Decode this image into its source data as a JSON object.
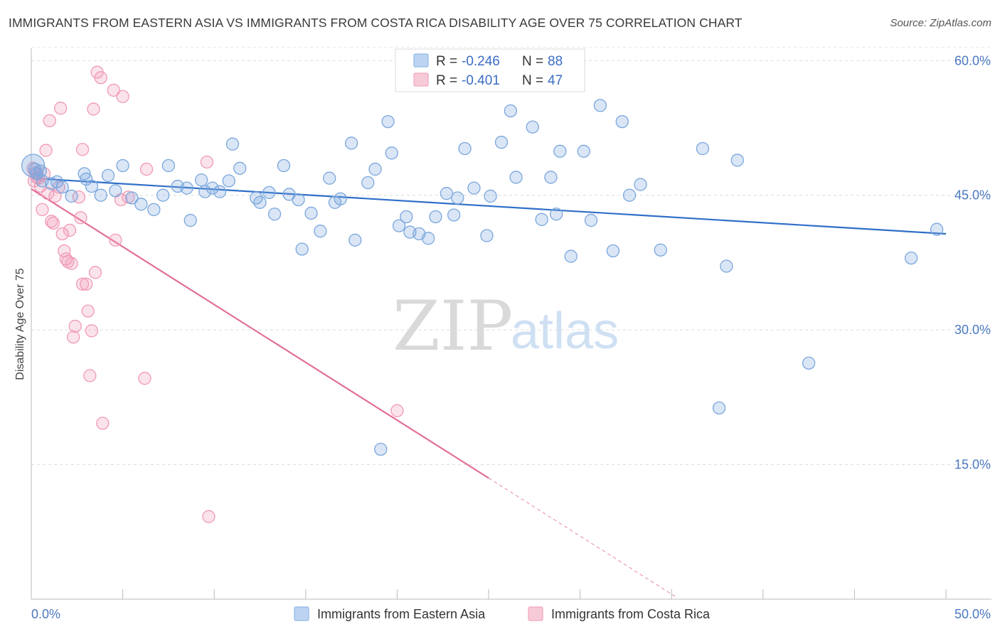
{
  "title": "IMMIGRANTS FROM EASTERN ASIA VS IMMIGRANTS FROM COSTA RICA DISABILITY AGE OVER 75 CORRELATION CHART",
  "source": "Source: ZipAtlas.com",
  "watermark": {
    "zip": "ZIP",
    "atlas": "atlas"
  },
  "chart_data": {
    "type": "scatter",
    "title": "IMMIGRANTS FROM EASTERN ASIA VS IMMIGRANTS FROM COSTA RICA DISABILITY AGE OVER 75 CORRELATION CHART",
    "xlabel": "",
    "ylabel": "Disability Age Over 75",
    "xlim": [
      0,
      50
    ],
    "ylim": [
      0,
      62
    ],
    "x_ticks": [
      "0.0%",
      "50.0%"
    ],
    "y_ticks": [
      {
        "value": 15,
        "label": "15.0%"
      },
      {
        "value": 30,
        "label": "30.0%"
      },
      {
        "value": 45,
        "label": "45.0%"
      },
      {
        "value": 60,
        "label": "60.0%"
      }
    ],
    "grid": true,
    "legend_placement": "top-center",
    "legend": [
      {
        "r_label": "R = ",
        "r": "-0.246",
        "n_label": "N = ",
        "n": "88",
        "color": "#8fb8e8"
      },
      {
        "r_label": "R = ",
        "r": "-0.401",
        "n_label": "N = ",
        "n": "47",
        "color": "#f2a6bd"
      }
    ],
    "series": [
      {
        "name": "Immigrants from Eastern Asia",
        "color": "#7aa7dd",
        "line_color": "#2f6fc8",
        "trend": {
          "x0": 0,
          "y0": 46.9,
          "x1": 50,
          "y1": 40.7
        },
        "points": [
          [
            0.2,
            47.9
          ],
          [
            0.3,
            47.4
          ],
          [
            0.5,
            47.7
          ],
          [
            0.6,
            46.6
          ],
          [
            1.1,
            46.3
          ],
          [
            1.4,
            46.5
          ],
          [
            1.7,
            45.9
          ],
          [
            2.2,
            44.9
          ],
          [
            2.9,
            47.4
          ],
          [
            3.0,
            46.8
          ],
          [
            3.3,
            46.0
          ],
          [
            3.8,
            45.0
          ],
          [
            4.2,
            47.2
          ],
          [
            4.6,
            45.5
          ],
          [
            5.0,
            48.3
          ],
          [
            5.5,
            44.7
          ],
          [
            6.0,
            44.0
          ],
          [
            6.7,
            43.4
          ],
          [
            7.2,
            45.0
          ],
          [
            7.5,
            48.3
          ],
          [
            8.0,
            46.0
          ],
          [
            8.5,
            45.8
          ],
          [
            8.7,
            42.2
          ],
          [
            9.3,
            46.7
          ],
          [
            9.5,
            45.4
          ],
          [
            9.9,
            45.8
          ],
          [
            10.3,
            45.4
          ],
          [
            10.8,
            46.6
          ],
          [
            11.0,
            50.7
          ],
          [
            11.4,
            48.0
          ],
          [
            12.3,
            44.7
          ],
          [
            12.5,
            44.2
          ],
          [
            13.0,
            45.3
          ],
          [
            13.3,
            42.9
          ],
          [
            13.8,
            48.3
          ],
          [
            14.1,
            45.1
          ],
          [
            14.6,
            44.5
          ],
          [
            14.8,
            39.0
          ],
          [
            15.3,
            43.0
          ],
          [
            15.8,
            41.0
          ],
          [
            16.3,
            46.9
          ],
          [
            16.6,
            44.2
          ],
          [
            16.9,
            44.6
          ],
          [
            17.5,
            50.8
          ],
          [
            17.7,
            40.0
          ],
          [
            18.4,
            46.4
          ],
          [
            18.8,
            47.9
          ],
          [
            19.1,
            16.7
          ],
          [
            19.5,
            53.2
          ],
          [
            19.7,
            49.7
          ],
          [
            20.1,
            41.6
          ],
          [
            20.5,
            42.6
          ],
          [
            20.7,
            40.9
          ],
          [
            21.2,
            40.7
          ],
          [
            21.7,
            40.2
          ],
          [
            22.1,
            42.6
          ],
          [
            22.7,
            45.2
          ],
          [
            23.1,
            42.8
          ],
          [
            23.3,
            44.7
          ],
          [
            23.7,
            50.2
          ],
          [
            24.2,
            45.8
          ],
          [
            24.9,
            40.5
          ],
          [
            25.1,
            44.9
          ],
          [
            25.7,
            50.9
          ],
          [
            26.2,
            54.4
          ],
          [
            26.5,
            47.0
          ],
          [
            27.4,
            52.6
          ],
          [
            27.9,
            42.3
          ],
          [
            28.4,
            47.0
          ],
          [
            28.7,
            42.9
          ],
          [
            28.9,
            49.9
          ],
          [
            29.5,
            38.2
          ],
          [
            30.2,
            49.9
          ],
          [
            30.6,
            42.2
          ],
          [
            31.1,
            55.0
          ],
          [
            31.8,
            38.8
          ],
          [
            32.3,
            53.2
          ],
          [
            32.7,
            45.0
          ],
          [
            33.3,
            46.2
          ],
          [
            34.4,
            38.9
          ],
          [
            36.7,
            50.2
          ],
          [
            37.6,
            21.3
          ],
          [
            38.0,
            37.1
          ],
          [
            38.6,
            48.9
          ],
          [
            42.5,
            26.3
          ],
          [
            48.1,
            38.0
          ],
          [
            49.5,
            41.2
          ],
          [
            0.1,
            48.3
          ]
        ]
      },
      {
        "name": "Immigrants from Costa Rica",
        "color": "#f09ab6",
        "line_color": "#e36f97",
        "trend": {
          "x0": 0,
          "y0": 45.7,
          "x1": 25,
          "y1": 13.5,
          "x_ext": 35.2,
          "y_ext": 0.3
        },
        "points": [
          [
            0.1,
            48.0
          ],
          [
            0.2,
            47.5
          ],
          [
            0.3,
            47.0
          ],
          [
            0.4,
            46.9
          ],
          [
            0.5,
            46.0
          ],
          [
            0.6,
            43.4
          ],
          [
            0.8,
            50.0
          ],
          [
            0.9,
            45.2
          ],
          [
            1.0,
            53.3
          ],
          [
            1.1,
            42.1
          ],
          [
            1.2,
            41.9
          ],
          [
            1.3,
            44.9
          ],
          [
            1.5,
            45.9
          ],
          [
            1.6,
            54.7
          ],
          [
            1.7,
            40.7
          ],
          [
            1.8,
            38.8
          ],
          [
            1.9,
            37.9
          ],
          [
            2.0,
            37.6
          ],
          [
            2.1,
            41.1
          ],
          [
            2.2,
            37.4
          ],
          [
            2.3,
            29.2
          ],
          [
            2.4,
            30.4
          ],
          [
            2.6,
            44.8
          ],
          [
            2.7,
            42.5
          ],
          [
            2.8,
            35.1
          ],
          [
            2.8,
            50.1
          ],
          [
            3.0,
            35.1
          ],
          [
            3.1,
            32.1
          ],
          [
            3.2,
            24.9
          ],
          [
            3.3,
            29.9
          ],
          [
            3.4,
            54.6
          ],
          [
            3.5,
            36.4
          ],
          [
            3.6,
            58.7
          ],
          [
            3.8,
            58.1
          ],
          [
            3.9,
            19.6
          ],
          [
            4.5,
            56.7
          ],
          [
            4.6,
            40.0
          ],
          [
            4.9,
            44.5
          ],
          [
            5.0,
            56.0
          ],
          [
            5.3,
            44.8
          ],
          [
            6.2,
            24.6
          ],
          [
            6.3,
            47.9
          ],
          [
            9.6,
            48.7
          ],
          [
            9.7,
            9.2
          ],
          [
            20.0,
            21.0
          ],
          [
            0.15,
            46.6
          ],
          [
            0.7,
            47.4
          ]
        ]
      }
    ]
  },
  "bottom_legend": [
    {
      "label": "Immigrants from Eastern Asia",
      "color": "#8fb8e8"
    },
    {
      "label": "Immigrants from Costa Rica",
      "color": "#f2a6bd"
    }
  ]
}
